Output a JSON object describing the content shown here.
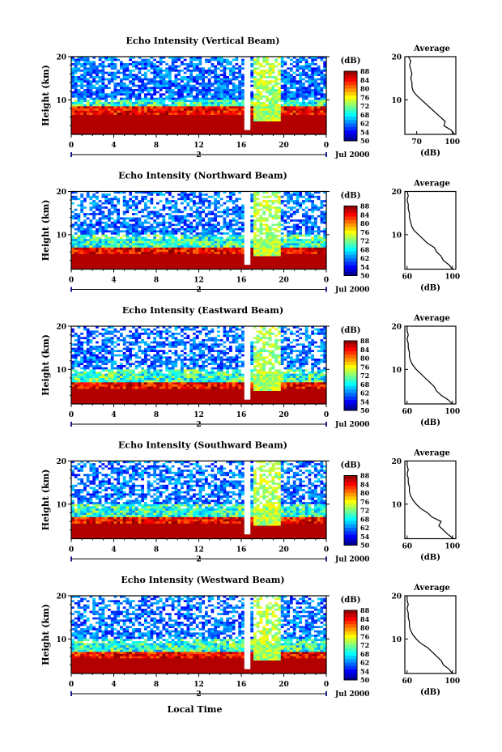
{
  "figure": {
    "xlabel": "Local Time",
    "date_label": "Jul 2000",
    "day_marker": "2",
    "height_label": "Height (km)",
    "cbar_unit": "(dB)",
    "avg_title": "Average",
    "avg_xlabel": "(dB)"
  },
  "chart_data": [
    {
      "type": "heatmap",
      "title": "Echo Intensity (Vertical Beam)",
      "xlabel": "Local Time",
      "ylabel": "Height (km)",
      "x_ticks": [
        "0",
        "4",
        "8",
        "12",
        "16",
        "20",
        "0"
      ],
      "y_ticks": [
        "10",
        "20"
      ],
      "xlim": [
        0,
        24
      ],
      "ylim": [
        2,
        20
      ],
      "colorbar": {
        "label": "(dB)",
        "ticks": [
          "50",
          "54",
          "62",
          "68",
          "72",
          "76",
          "80",
          "84",
          "88"
        ]
      },
      "average_profile": {
        "title": "Average",
        "xlabel": "(dB)",
        "x_ticks": [
          "70",
          "100"
        ],
        "y_ticks": [
          "10",
          "20"
        ],
        "xlim": [
          60,
          103
        ],
        "heights": [
          2,
          3,
          4,
          5,
          6,
          7,
          8,
          9,
          10,
          11,
          12,
          13,
          14,
          15,
          16,
          17,
          18,
          19,
          20
        ],
        "values": [
          102,
          99,
          93,
          94,
          90,
          86,
          82,
          78,
          74,
          70,
          67,
          66,
          66,
          65,
          66,
          65,
          64,
          65,
          63
        ]
      }
    },
    {
      "type": "heatmap",
      "title": "Echo Intensity (Northward Beam)",
      "xlabel": "Local Time",
      "ylabel": "Height (km)",
      "x_ticks": [
        "0",
        "4",
        "8",
        "12",
        "16",
        "20",
        "0"
      ],
      "y_ticks": [
        "10",
        "20"
      ],
      "xlim": [
        0,
        24
      ],
      "ylim": [
        2,
        20
      ],
      "colorbar": {
        "label": "(dB)",
        "ticks": [
          "50",
          "54",
          "62",
          "68",
          "72",
          "76",
          "80",
          "84",
          "88"
        ]
      },
      "average_profile": {
        "title": "Average",
        "xlabel": "(dB)",
        "x_ticks": [
          "60",
          "100"
        ],
        "y_ticks": [
          "10",
          "20"
        ],
        "xlim": [
          58,
          103
        ],
        "heights": [
          2,
          3,
          4,
          5,
          6,
          7,
          8,
          9,
          10,
          11,
          12,
          13,
          14,
          15,
          16,
          17,
          18,
          19,
          20
        ],
        "values": [
          100,
          97,
          92,
          90,
          86,
          84,
          78,
          74,
          70,
          66,
          64,
          63,
          62,
          62,
          61,
          61,
          60,
          61,
          60
        ]
      }
    },
    {
      "type": "heatmap",
      "title": "Echo Intensity (Eastward Beam)",
      "xlabel": "Local Time",
      "ylabel": "Height (km)",
      "x_ticks": [
        "0",
        "4",
        "8",
        "12",
        "16",
        "20",
        "0"
      ],
      "y_ticks": [
        "10",
        "20"
      ],
      "xlim": [
        0,
        24
      ],
      "ylim": [
        2,
        20
      ],
      "colorbar": {
        "label": "(dB)",
        "ticks": [
          "50",
          "54",
          "62",
          "68",
          "72",
          "76",
          "80",
          "84",
          "88"
        ]
      },
      "average_profile": {
        "title": "Average",
        "xlabel": "(dB)",
        "x_ticks": [
          "60",
          "100"
        ],
        "y_ticks": [
          "10",
          "20"
        ],
        "xlim": [
          58,
          103
        ],
        "heights": [
          2,
          3,
          4,
          5,
          6,
          7,
          8,
          9,
          10,
          11,
          12,
          13,
          14,
          15,
          16,
          17,
          18,
          19,
          20
        ],
        "values": [
          100,
          96,
          90,
          86,
          84,
          80,
          76,
          72,
          68,
          65,
          63,
          62,
          62,
          61,
          61,
          60,
          61,
          60,
          60
        ]
      }
    },
    {
      "type": "heatmap",
      "title": "Echo Intensity (Southward Beam)",
      "xlabel": "Local Time",
      "ylabel": "Height (km)",
      "x_ticks": [
        "0",
        "4",
        "8",
        "12",
        "16",
        "20",
        "0"
      ],
      "y_ticks": [
        "10",
        "20"
      ],
      "xlim": [
        0,
        24
      ],
      "ylim": [
        2,
        20
      ],
      "colorbar": {
        "label": "(dB)",
        "ticks": [
          "50",
          "54",
          "62",
          "68",
          "72",
          "76",
          "80",
          "84",
          "88"
        ]
      },
      "average_profile": {
        "title": "Average",
        "xlabel": "(dB)",
        "x_ticks": [
          "60",
          "100"
        ],
        "y_ticks": [
          "10",
          "20"
        ],
        "xlim": [
          58,
          103
        ],
        "heights": [
          2,
          3,
          4,
          5,
          6,
          7,
          8,
          9,
          10,
          11,
          12,
          13,
          14,
          15,
          16,
          17,
          18,
          19,
          20
        ],
        "values": [
          101,
          96,
          92,
          88,
          90,
          82,
          78,
          72,
          68,
          65,
          63,
          62,
          62,
          61,
          61,
          60,
          61,
          60,
          60
        ]
      }
    },
    {
      "type": "heatmap",
      "title": "Echo Intensity (Westward Beam)",
      "xlabel": "Local Time",
      "ylabel": "Height (km)",
      "x_ticks": [
        "0",
        "4",
        "8",
        "12",
        "16",
        "20",
        "0"
      ],
      "y_ticks": [
        "10",
        "20"
      ],
      "xlim": [
        0,
        24
      ],
      "ylim": [
        2,
        20
      ],
      "colorbar": {
        "label": "(dB)",
        "ticks": [
          "50",
          "54",
          "62",
          "68",
          "72",
          "76",
          "80",
          "84",
          "88"
        ]
      },
      "average_profile": {
        "title": "Average",
        "xlabel": "(dB)",
        "x_ticks": [
          "60",
          "100"
        ],
        "y_ticks": [
          "10",
          "20"
        ],
        "xlim": [
          58,
          103
        ],
        "heights": [
          2,
          3,
          4,
          5,
          6,
          7,
          8,
          9,
          10,
          11,
          12,
          13,
          14,
          15,
          16,
          17,
          18,
          19,
          20
        ],
        "values": [
          100,
          97,
          92,
          90,
          86,
          82,
          78,
          72,
          68,
          65,
          63,
          62,
          62,
          61,
          61,
          60,
          61,
          60,
          60
        ]
      }
    }
  ]
}
